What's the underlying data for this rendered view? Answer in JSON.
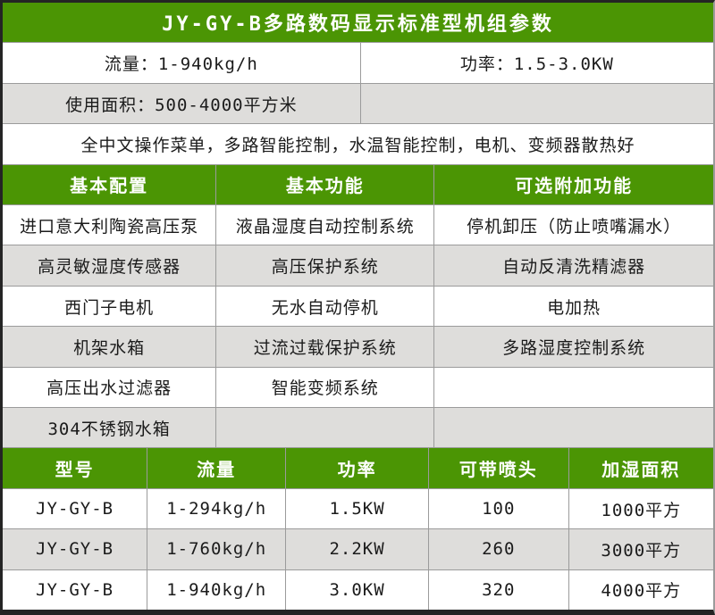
{
  "colors": {
    "header_green": "#4b9504",
    "row_gray": "#dedddb",
    "grid_line": "#9b9b9b",
    "frame_dark": "#242424",
    "body_text": "#1b1b1b",
    "header_text": "#ffffff"
  },
  "title": "JY-GY-B多路数码显示标准型机组参数",
  "specs": {
    "flow": "流量：1-940kg/h",
    "power": "功率：1.5-3.0KW",
    "area": "使用面积：500-4000平方米",
    "area_right": "",
    "features_line": "全中文操作菜单，多路智能控制，水温智能控制，电机、变频器散热好"
  },
  "config_table": {
    "headers": [
      "基本配置",
      "基本功能",
      "可选附加功能"
    ],
    "rows": [
      [
        "进口意大利陶瓷高压泵",
        "液晶湿度自动控制系统",
        "停机卸压（防止喷嘴漏水）"
      ],
      [
        "高灵敏湿度传感器",
        "高压保护系统",
        "自动反清洗精滤器"
      ],
      [
        "西门子电机",
        "无水自动停机",
        "电加热"
      ],
      [
        "机架水箱",
        "过流过载保护系统",
        "多路湿度控制系统"
      ],
      [
        "高压出水过滤器",
        "智能变频系统",
        ""
      ],
      [
        "304不锈钢水箱",
        "",
        ""
      ]
    ]
  },
  "model_table": {
    "headers": [
      "型号",
      "流量",
      "功率",
      "可带喷头",
      "加湿面积"
    ],
    "rows": [
      [
        "JY-GY-B",
        "1-294kg/h",
        "1.5KW",
        "100",
        "1000平方"
      ],
      [
        "JY-GY-B",
        "1-760kg/h",
        "2.2KW",
        "260",
        "3000平方"
      ],
      [
        "JY-GY-B",
        "1-940kg/h",
        "3.0KW",
        "320",
        "4000平方"
      ]
    ]
  }
}
